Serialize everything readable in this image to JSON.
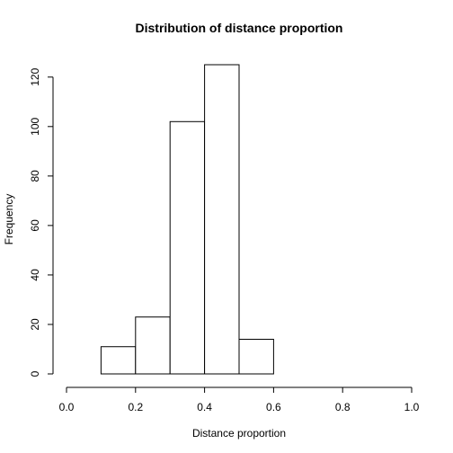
{
  "chart_data": {
    "type": "bar",
    "title": "Distribution of distance proportion",
    "xlabel": "Distance proportion",
    "ylabel": "Frequency",
    "bin_edges": [
      0.0,
      0.1,
      0.2,
      0.3,
      0.4,
      0.5,
      0.6,
      0.7,
      0.8,
      0.9,
      1.0
    ],
    "values": [
      0,
      11,
      23,
      102,
      125,
      14,
      0,
      0,
      0,
      0
    ],
    "xlim": [
      0.0,
      1.0
    ],
    "ylim": [
      0,
      125
    ],
    "x_ticks": [
      0.0,
      0.2,
      0.4,
      0.6,
      0.8,
      1.0
    ],
    "x_tick_labels": [
      "0.0",
      "0.2",
      "0.4",
      "0.6",
      "0.8",
      "1.0"
    ],
    "y_ticks": [
      0,
      20,
      40,
      60,
      80,
      100,
      120
    ],
    "y_tick_labels": [
      "0",
      "20",
      "40",
      "60",
      "80",
      "100",
      "120"
    ],
    "grid": false,
    "legend": "none",
    "bar_fill": "#ffffff",
    "bar_stroke": "#000000"
  }
}
